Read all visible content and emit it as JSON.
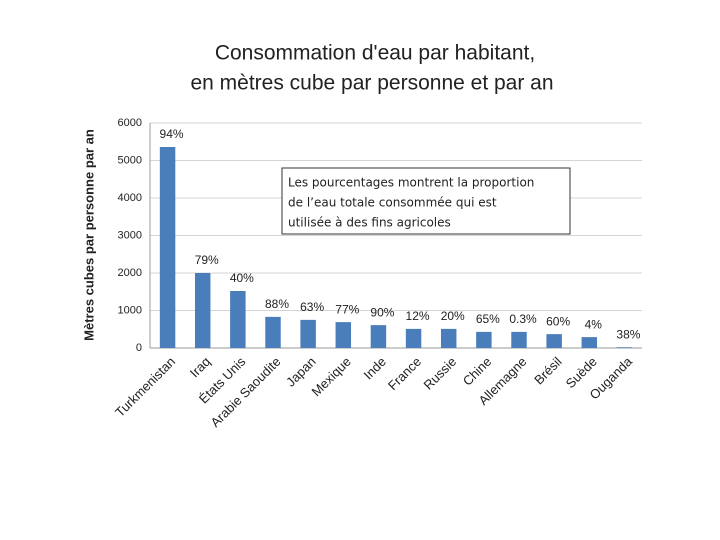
{
  "chart_data": {
    "type": "bar",
    "title": [
      "Consommation d'eau par habitant,",
      "en mètres cube par personne et par an"
    ],
    "y_label": "Mètres cubes par personne par an",
    "categories": [
      "Turkmenistan",
      "Iraq",
      "États Unis",
      "Arabie Saoudite",
      "Japan",
      "Mexique",
      "Inde",
      "France",
      "Russie",
      "Chine",
      "Allemagne",
      "Brésil",
      "Suède",
      "Ouganda"
    ],
    "values": [
      5360,
      2000,
      1520,
      830,
      750,
      690,
      610,
      510,
      510,
      430,
      430,
      370,
      290,
      20
    ],
    "bar_labels": [
      "94%",
      "79%",
      "40%",
      "88%",
      "63%",
      "77%",
      "90%",
      "12%",
      "20%",
      "65%",
      "0.3%",
      "60%",
      "4%",
      "38%"
    ],
    "annotation": [
      "Les pourcentages montrent la proportion",
      "de l’eau totale consommée qui est",
      "utilisée à des fins agricoles"
    ],
    "color": "#4a7ebb",
    "ylim": [
      0,
      6000
    ],
    "yticks": [
      0,
      1000,
      2000,
      3000,
      4000,
      5000,
      6000
    ],
    "grid": true
  }
}
